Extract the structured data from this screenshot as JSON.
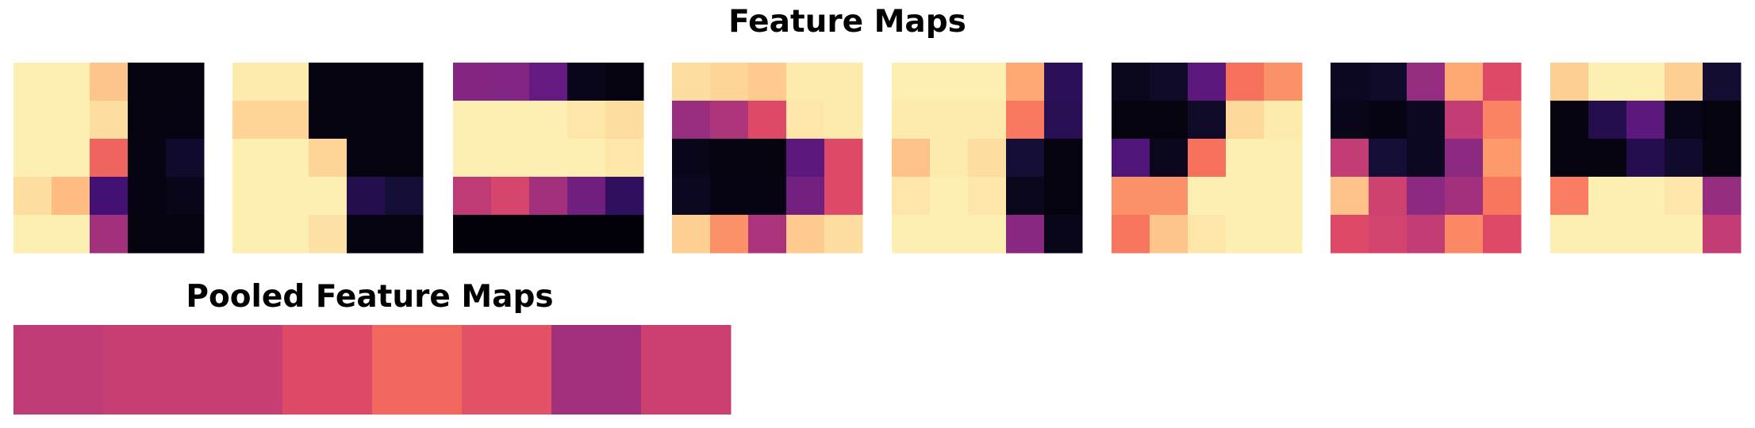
{
  "chart_data": [
    {
      "type": "heatmap",
      "title": "Feature Maps",
      "colormap": "magma",
      "value_range": [
        0,
        1
      ],
      "grid": false,
      "axes": "off",
      "maps": [
        [
          [
            0.97,
            0.97,
            0.88,
            0.02,
            0.02
          ],
          [
            0.97,
            0.97,
            0.93,
            0.02,
            0.03
          ],
          [
            0.97,
            0.97,
            0.67,
            0.03,
            0.08
          ],
          [
            0.93,
            0.86,
            0.22,
            0.03,
            0.04
          ],
          [
            0.97,
            0.97,
            0.45,
            0.02,
            0.02
          ]
        ],
        [
          [
            0.96,
            0.96,
            0.02,
            0.02,
            0.02
          ],
          [
            0.91,
            0.91,
            0.02,
            0.02,
            0.02
          ],
          [
            0.97,
            0.97,
            0.91,
            0.02,
            0.02
          ],
          [
            0.97,
            0.97,
            0.97,
            0.14,
            0.1
          ],
          [
            0.97,
            0.97,
            0.94,
            0.02,
            0.02
          ]
        ],
        [
          [
            0.38,
            0.37,
            0.3,
            0.04,
            0.02
          ],
          [
            0.97,
            0.97,
            0.97,
            0.95,
            0.93
          ],
          [
            0.97,
            0.97,
            0.97,
            0.97,
            0.95
          ],
          [
            0.52,
            0.58,
            0.45,
            0.33,
            0.17
          ],
          [
            0.01,
            0.01,
            0.01,
            0.01,
            0.01
          ]
        ],
        [
          [
            0.93,
            0.91,
            0.89,
            0.96,
            0.96
          ],
          [
            0.43,
            0.48,
            0.6,
            0.95,
            0.96
          ],
          [
            0.04,
            0.02,
            0.02,
            0.28,
            0.6
          ],
          [
            0.06,
            0.03,
            0.03,
            0.34,
            0.6
          ],
          [
            0.9,
            0.77,
            0.47,
            0.89,
            0.93
          ]
        ],
        [
          [
            0.97,
            0.97,
            0.97,
            0.82,
            0.16
          ],
          [
            0.96,
            0.96,
            0.96,
            0.72,
            0.15
          ],
          [
            0.87,
            0.96,
            0.93,
            0.1,
            0.02
          ],
          [
            0.95,
            0.97,
            0.95,
            0.05,
            0.02
          ],
          [
            0.97,
            0.97,
            0.97,
            0.39,
            0.04
          ]
        ],
        [
          [
            0.05,
            0.07,
            0.28,
            0.7,
            0.77
          ],
          [
            0.02,
            0.02,
            0.07,
            0.92,
            0.96
          ],
          [
            0.25,
            0.05,
            0.7,
            0.97,
            0.97
          ],
          [
            0.77,
            0.77,
            0.97,
            0.97,
            0.97
          ],
          [
            0.71,
            0.88,
            0.95,
            0.97,
            0.97
          ]
        ],
        [
          [
            0.06,
            0.07,
            0.42,
            0.82,
            0.6
          ],
          [
            0.04,
            0.03,
            0.06,
            0.53,
            0.74
          ],
          [
            0.53,
            0.1,
            0.06,
            0.4,
            0.79
          ],
          [
            0.87,
            0.56,
            0.4,
            0.45,
            0.71
          ],
          [
            0.6,
            0.57,
            0.53,
            0.75,
            0.6
          ]
        ],
        [
          [
            0.9,
            0.97,
            0.97,
            0.9,
            0.09
          ],
          [
            0.02,
            0.14,
            0.28,
            0.04,
            0.02
          ],
          [
            0.02,
            0.02,
            0.14,
            0.08,
            0.02
          ],
          [
            0.73,
            0.97,
            0.97,
            0.95,
            0.42
          ],
          [
            0.97,
            0.97,
            0.97,
            0.97,
            0.53
          ]
        ]
      ]
    },
    {
      "type": "heatmap",
      "title": "Pooled Feature Maps",
      "colormap": "magma",
      "value_range": [
        0,
        1
      ],
      "grid": false,
      "axes": "off",
      "values": [
        0.52,
        0.54,
        0.54,
        0.6,
        0.68,
        0.62,
        0.45,
        0.55
      ]
    }
  ]
}
